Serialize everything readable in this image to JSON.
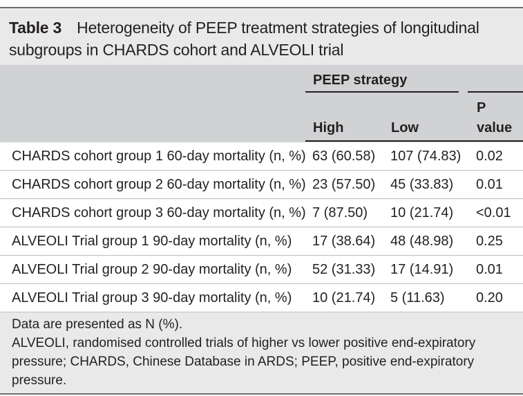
{
  "table": {
    "label": "Table 3",
    "caption_line1": "Heterogeneity of PEEP treatment strategies of longitudinal",
    "caption_line2": "subgroups in CHARDS cohort and ALVEOLI trial",
    "group_header": "PEEP strategy",
    "columns": [
      "High",
      "Low",
      "P",
      "value"
    ],
    "rows": [
      {
        "label": "CHARDS cohort group 1 60-day mortality (n, %)",
        "high": "63 (60.58)",
        "low": "107 (74.83)",
        "p": "0.02"
      },
      {
        "label": "CHARDS cohort group 2 60-day mortality (n, %)",
        "high": "23 (57.50)",
        "low": "45 (33.83)",
        "p": "0.01"
      },
      {
        "label": "CHARDS cohort group 3 60-day mortality (n, %)",
        "high": "7 (87.50)",
        "low": "10 (21.74)",
        "p": "<0.01"
      },
      {
        "label": "ALVEOLI Trial group 1 90-day mortality (n, %)",
        "high": "17 (38.64)",
        "low": "48 (48.98)",
        "p": "0.25"
      },
      {
        "label": "ALVEOLI Trial group 2 90-day mortality (n, %)",
        "high": "52 (31.33)",
        "low": "17 (14.91)",
        "p": "0.01"
      },
      {
        "label": "ALVEOLI Trial group 3 90-day mortality (n, %)",
        "high": "10 (21.74)",
        "low": "5 (11.63)",
        "p": "0.20"
      }
    ],
    "footnotes": [
      "Data are presented as N (%).",
      "ALVEOLI, randomised controlled trials of higher vs lower positive end-expiratory",
      "pressure; CHARDS, Chinese Database in ARDS; PEEP, positive end-expiratory",
      "pressure."
    ]
  }
}
